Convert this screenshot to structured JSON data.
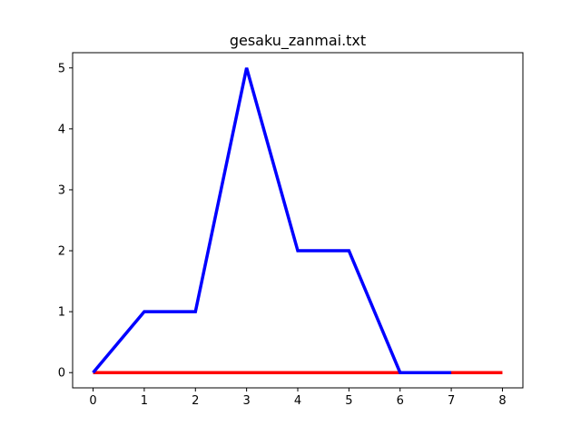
{
  "chart_data": {
    "type": "line",
    "title": "gesaku_zanmai.txt",
    "xlabel": "",
    "ylabel": "",
    "xlim": [
      -0.4,
      8.4
    ],
    "ylim": [
      -0.25,
      5.25
    ],
    "xticks": [
      0,
      1,
      2,
      3,
      4,
      5,
      6,
      7,
      8
    ],
    "yticks": [
      0,
      1,
      2,
      3,
      4,
      5
    ],
    "grid": false,
    "legend": "none",
    "series": [
      {
        "color": "#ff0000",
        "x": [
          0,
          1,
          2,
          3,
          4,
          5,
          6,
          7,
          8
        ],
        "y": [
          0,
          0,
          0,
          0,
          0,
          0,
          0,
          0,
          0
        ]
      },
      {
        "color": "#0000ff",
        "x": [
          0,
          1,
          2,
          3,
          4,
          5,
          6,
          7
        ],
        "y": [
          0,
          1,
          1,
          5,
          2,
          2,
          0,
          0
        ]
      }
    ]
  }
}
